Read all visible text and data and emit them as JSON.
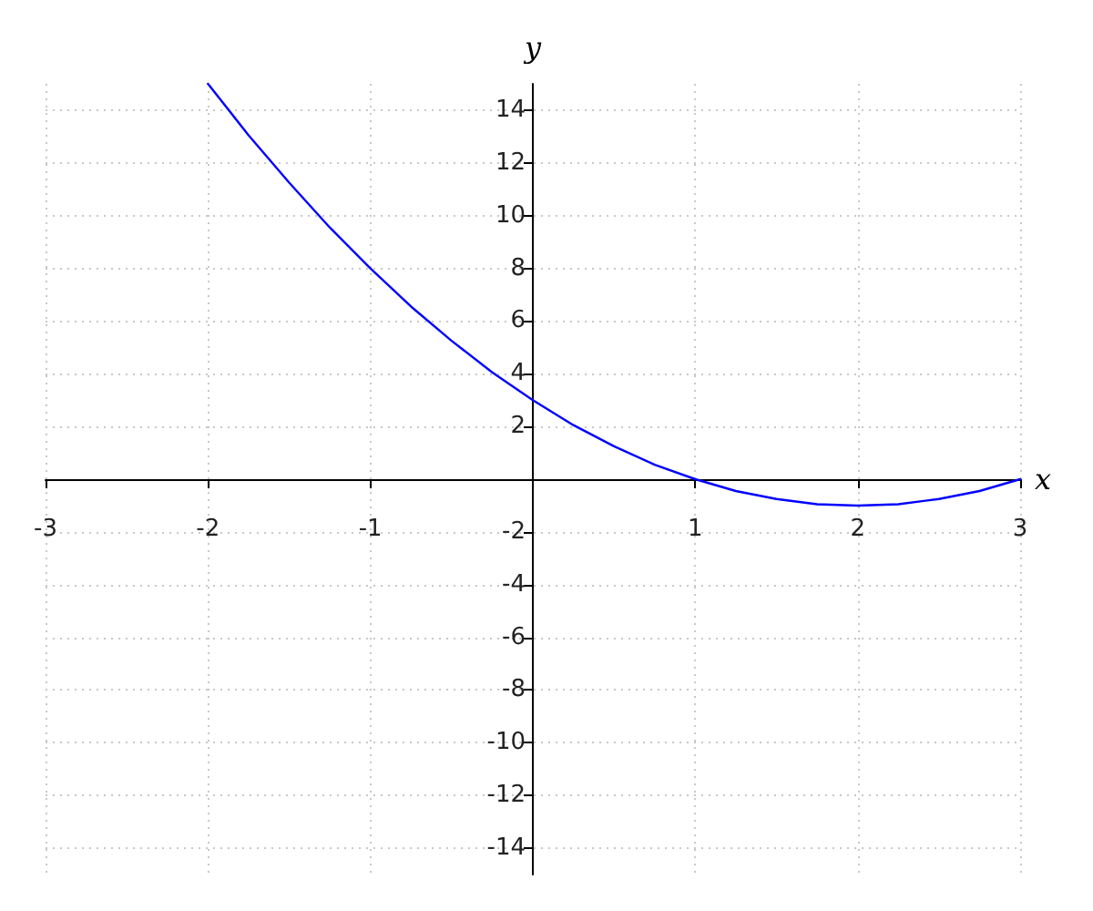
{
  "chart_data": {
    "type": "line",
    "xlabel": "x",
    "ylabel": "y",
    "x": [
      -2,
      -1.75,
      -1.5,
      -1.25,
      -1,
      -0.75,
      -0.5,
      -0.25,
      0,
      0.25,
      0.5,
      0.75,
      1,
      1.25,
      1.5,
      1.75,
      2,
      2.25,
      2.5,
      2.75,
      3
    ],
    "values": [
      15,
      13.05,
      11.25,
      9.55,
      8,
      6.55,
      5.25,
      4.05,
      3,
      2.05,
      1.25,
      0.55,
      0,
      -0.45,
      -0.75,
      -0.95,
      -1,
      -0.95,
      -0.75,
      -0.45,
      0
    ],
    "color": "#0000ff",
    "marker": "none",
    "line_style": "solid",
    "xlim": [
      -3,
      3
    ],
    "xticks": [
      -3,
      -2,
      -1,
      1,
      2,
      3
    ],
    "ylim": [
      -15,
      15
    ],
    "yticks": [
      -14,
      -12,
      -10,
      -8,
      -6,
      -4,
      -2,
      2,
      4,
      6,
      8,
      10,
      12,
      14
    ],
    "grid": true
  }
}
